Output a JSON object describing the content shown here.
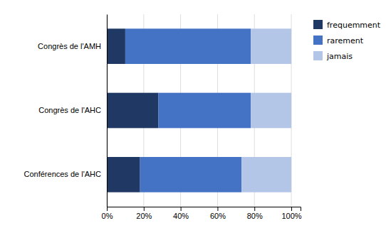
{
  "chart_data": {
    "type": "bar",
    "orientation": "horizontal",
    "stacked": true,
    "categories": [
      "Conférences de l'AHC",
      "Congrès de l'AHC",
      "Congrès de l'AMH"
    ],
    "series": [
      {
        "name": "frequemment",
        "color": "#1f3864",
        "values": [
          0.18,
          0.28,
          0.1
        ]
      },
      {
        "name": "rarement",
        "color": "#4472c4",
        "values": [
          0.55,
          0.5,
          0.68
        ]
      },
      {
        "name": "jamais",
        "color": "#b4c6e7",
        "values": [
          0.27,
          0.22,
          0.22
        ]
      }
    ],
    "xlim": [
      0,
      1.05
    ],
    "xticks": [
      {
        "value": 0.0,
        "label": "0%"
      },
      {
        "value": 0.2,
        "label": "20%"
      },
      {
        "value": 0.4,
        "label": "40%"
      },
      {
        "value": 0.6,
        "label": "60%"
      },
      {
        "value": 0.8,
        "label": "80%"
      },
      {
        "value": 1.0,
        "label": "100%"
      }
    ],
    "grid": true,
    "legend": "right"
  }
}
